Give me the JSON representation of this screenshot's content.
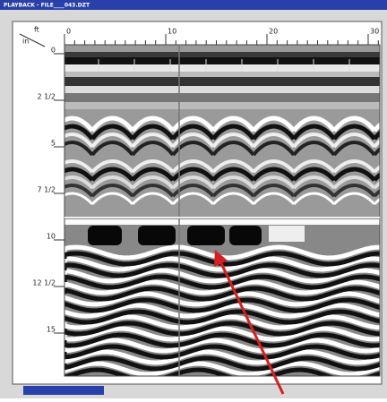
{
  "window": {
    "title": "PLAYBACK - FILE____043.DZT"
  },
  "axes": {
    "unit_depth": "in",
    "unit_distance": "ft",
    "distance_labels": [
      "0",
      "10",
      "20",
      "30"
    ],
    "depth_labels": [
      "0",
      "2 1/2",
      "5",
      "7 1/2",
      "10",
      "12 1/2",
      "15"
    ]
  }
}
